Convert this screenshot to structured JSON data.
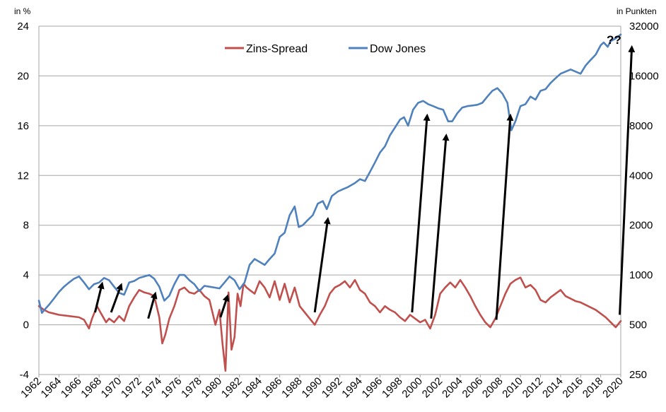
{
  "chart_data": {
    "type": "line",
    "x_start": 1962,
    "x_end": 2020,
    "x_ticks": [
      "1962",
      "1964",
      "1966",
      "1968",
      "1970",
      "1972",
      "1974",
      "1976",
      "1978",
      "1980",
      "1982",
      "1984",
      "1986",
      "1988",
      "1990",
      "1992",
      "1994",
      "1996",
      "1998",
      "2000",
      "2002",
      "2004",
      "2006",
      "2008",
      "2010",
      "2012",
      "2014",
      "2016",
      "2018",
      "2020"
    ],
    "y_left_label": "in %",
    "y_left_ticks": [
      "-4",
      "0",
      "4",
      "8",
      "12",
      "16",
      "20",
      "24"
    ],
    "y_left_range": [
      -4,
      24
    ],
    "y_right_label": "in Punkten",
    "y_right_ticks": [
      "250",
      "500",
      "1000",
      "2000",
      "4000",
      "8000",
      "16000",
      "32000"
    ],
    "y_right_range": [
      250,
      32000
    ],
    "y_right_scale": "log",
    "grid": "horizontal",
    "legend_position": "top-center",
    "colors": {
      "spread": "#C0504D",
      "dow": "#4F81BD",
      "grid": "#A6A6A6",
      "arrow": "#000000"
    },
    "series": [
      {
        "name": "Zins-Spread",
        "axis": "left",
        "x": [
          1962.0,
          1962.5,
          1963.0,
          1963.5,
          1964.0,
          1965.0,
          1966.0,
          1966.5,
          1967.0,
          1967.3,
          1967.8,
          1968.2,
          1968.7,
          1969.0,
          1969.5,
          1970.0,
          1970.5,
          1971.0,
          1971.5,
          1972.0,
          1972.5,
          1973.0,
          1973.5,
          1974.0,
          1974.3,
          1974.6,
          1975.0,
          1975.5,
          1976.0,
          1976.5,
          1977.0,
          1977.5,
          1978.0,
          1978.5,
          1979.0,
          1979.3,
          1979.6,
          1980.0,
          1980.3,
          1980.6,
          1980.9,
          1981.2,
          1981.5,
          1981.8,
          1982.1,
          1982.4,
          1982.7,
          1983.0,
          1983.5,
          1984.0,
          1984.5,
          1985.0,
          1985.5,
          1986.0,
          1986.5,
          1987.0,
          1987.5,
          1988.0,
          1988.5,
          1989.0,
          1989.5,
          1990.0,
          1990.5,
          1991.0,
          1991.5,
          1992.0,
          1992.5,
          1993.0,
          1993.5,
          1994.0,
          1994.5,
          1995.0,
          1995.5,
          1996.0,
          1996.5,
          1997.0,
          1997.5,
          1998.0,
          1998.5,
          1999.0,
          1999.5,
          2000.0,
          2000.5,
          2001.0,
          2001.5,
          2002.0,
          2002.5,
          2003.0,
          2003.5,
          2004.0,
          2004.5,
          2005.0,
          2005.5,
          2006.0,
          2006.5,
          2007.0,
          2007.5,
          2008.0,
          2008.5,
          2009.0,
          2009.5,
          2010.0,
          2010.5,
          2011.0,
          2011.5,
          2012.0,
          2012.5,
          2013.0,
          2013.5,
          2014.0,
          2014.5,
          2015.0,
          2015.5,
          2016.0,
          2016.5,
          2017.0,
          2017.5,
          2018.0,
          2018.5,
          2019.0,
          2019.5,
          2020.0
        ],
        "values": [
          1.5,
          1.2,
          1.0,
          0.9,
          0.8,
          0.7,
          0.6,
          0.4,
          -0.3,
          0.5,
          1.5,
          0.9,
          0.2,
          0.5,
          0.2,
          0.7,
          0.3,
          1.5,
          2.2,
          2.8,
          2.6,
          2.5,
          2.3,
          0.6,
          -1.5,
          -0.8,
          0.5,
          1.5,
          2.8,
          3.0,
          2.6,
          2.5,
          2.8,
          2.3,
          2.0,
          1.0,
          0.0,
          1.2,
          -1.5,
          -3.7,
          2.6,
          -2.0,
          -1.0,
          2.5,
          1.5,
          3.3,
          3.0,
          2.8,
          2.5,
          3.5,
          3.0,
          2.2,
          3.5,
          2.0,
          3.3,
          1.8,
          3.0,
          1.5,
          1.0,
          0.5,
          0.0,
          0.8,
          1.5,
          2.5,
          3.0,
          3.2,
          3.5,
          3.0,
          3.6,
          2.8,
          2.5,
          1.8,
          1.5,
          1.0,
          1.5,
          1.2,
          1.0,
          0.6,
          0.3,
          0.8,
          0.5,
          0.2,
          0.4,
          -0.3,
          0.8,
          2.5,
          3.0,
          3.4,
          3.0,
          3.6,
          3.0,
          2.3,
          1.5,
          0.8,
          0.2,
          -0.2,
          0.5,
          1.5,
          2.5,
          3.3,
          3.6,
          3.8,
          3.0,
          3.2,
          2.8,
          2.0,
          1.8,
          2.2,
          2.5,
          2.8,
          2.3,
          2.1,
          1.9,
          1.8,
          1.6,
          1.4,
          1.2,
          0.9,
          0.6,
          0.2,
          -0.2,
          0.3
        ]
      },
      {
        "name": "Dow Jones",
        "axis": "right",
        "x": [
          1962.0,
          1962.3,
          1962.6,
          1963.0,
          1963.5,
          1964.0,
          1964.5,
          1965.0,
          1965.5,
          1966.0,
          1966.5,
          1967.0,
          1967.5,
          1968.0,
          1968.5,
          1969.0,
          1969.5,
          1970.0,
          1970.5,
          1971.0,
          1971.5,
          1972.0,
          1972.5,
          1973.0,
          1973.5,
          1974.0,
          1974.5,
          1975.0,
          1975.5,
          1976.0,
          1976.5,
          1977.0,
          1977.5,
          1978.0,
          1978.5,
          1979.0,
          1979.5,
          1980.0,
          1980.5,
          1981.0,
          1981.5,
          1982.0,
          1982.5,
          1983.0,
          1983.5,
          1984.0,
          1984.5,
          1985.0,
          1985.5,
          1986.0,
          1986.5,
          1987.0,
          1987.5,
          1987.9,
          1988.3,
          1988.8,
          1989.3,
          1989.8,
          1990.3,
          1990.7,
          1991.2,
          1991.8,
          1992.3,
          1992.8,
          1993.5,
          1994.0,
          1994.5,
          1995.0,
          1995.5,
          1996.0,
          1996.5,
          1997.0,
          1997.5,
          1998.0,
          1998.4,
          1998.8,
          1999.3,
          1999.8,
          2000.3,
          2000.8,
          2001.3,
          2001.8,
          2002.3,
          2002.8,
          2003.2,
          2003.7,
          2004.2,
          2004.7,
          2005.2,
          2005.7,
          2006.2,
          2006.7,
          2007.2,
          2007.7,
          2008.2,
          2008.7,
          2009.1,
          2009.5,
          2010.0,
          2010.5,
          2011.0,
          2011.5,
          2012.0,
          2012.5,
          2013.0,
          2013.5,
          2014.0,
          2014.5,
          2015.0,
          2015.5,
          2016.0,
          2016.5,
          2017.0,
          2017.5,
          2018.0,
          2018.3,
          2018.7,
          2019.0,
          2019.5,
          2020.0
        ],
        "values": [
          700,
          590,
          620,
          660,
          720,
          790,
          850,
          900,
          950,
          980,
          900,
          820,
          880,
          900,
          960,
          930,
          850,
          780,
          760,
          900,
          920,
          960,
          980,
          1000,
          950,
          850,
          700,
          750,
          880,
          1000,
          1000,
          930,
          880,
          800,
          860,
          850,
          840,
          830,
          900,
          980,
          930,
          820,
          900,
          1150,
          1250,
          1200,
          1150,
          1250,
          1350,
          1700,
          1800,
          2300,
          2600,
          1950,
          2000,
          2150,
          2300,
          2700,
          2800,
          2500,
          3000,
          3200,
          3300,
          3400,
          3600,
          3800,
          3700,
          4200,
          4800,
          5500,
          6000,
          7000,
          7800,
          8700,
          9000,
          8000,
          10000,
          11000,
          11300,
          10800,
          10500,
          10200,
          10000,
          8500,
          8500,
          9500,
          10300,
          10500,
          10600,
          10700,
          11000,
          12000,
          13000,
          13500,
          12500,
          11000,
          7500,
          8500,
          10500,
          10800,
          12000,
          11500,
          13000,
          13300,
          14500,
          15500,
          16500,
          17000,
          17500,
          17000,
          16500,
          18500,
          20000,
          21500,
          24500,
          25500,
          24000,
          26000,
          27000,
          28500
        ]
      }
    ],
    "arrows": [
      [
        1967.6,
        1,
        1968.3,
        3.3
      ],
      [
        1969.2,
        1,
        1970.2,
        3.2
      ],
      [
        1972.9,
        0.5,
        1973.6,
        2.5
      ],
      [
        1980.1,
        0.6,
        1980.8,
        2.3
      ],
      [
        1989.5,
        1,
        1990.8,
        8.5
      ],
      [
        1999.2,
        1,
        2000.7,
        16.8
      ],
      [
        2001.1,
        0.5,
        2002.6,
        15.2
      ],
      [
        2007.6,
        0.4,
        2009.0,
        16.8
      ],
      [
        2019.9,
        0.8,
        2021.1,
        22.3
      ]
    ],
    "annotation": "??",
    "legend": [
      {
        "label": "Zins-Spread"
      },
      {
        "label": "Dow Jones"
      }
    ]
  }
}
